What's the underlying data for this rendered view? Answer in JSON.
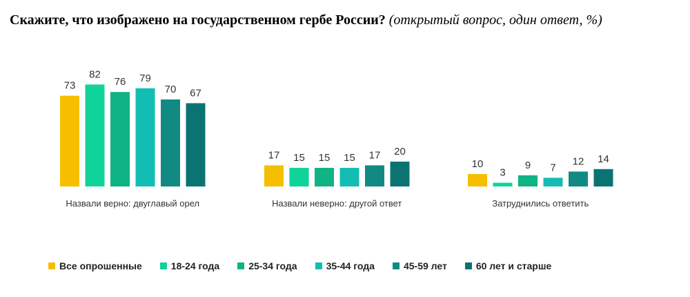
{
  "question": {
    "main": "Скажите, что изображено на государственном гербе России?",
    "note": "(открытый вопрос, один ответ, %)"
  },
  "colors": [
    "#f5bf00",
    "#10d39a",
    "#0fb384",
    "#13bdb4",
    "#118a84",
    "#0b7473"
  ],
  "chart_data": {
    "type": "bar",
    "categories": [
      "Назвали верно: двуглавый орел",
      "Назвали неверно: другой ответ",
      "Затруднились ответить"
    ],
    "series": [
      {
        "name": "Все опрошенные",
        "values": [
          73,
          17,
          10
        ]
      },
      {
        "name": "18-24 года",
        "values": [
          82,
          15,
          3
        ]
      },
      {
        "name": "25-34 года",
        "values": [
          76,
          15,
          9
        ]
      },
      {
        "name": "35-44 года",
        "values": [
          79,
          15,
          7
        ]
      },
      {
        "name": "45-59 лет",
        "values": [
          70,
          17,
          12
        ]
      },
      {
        "name": "60 лет и старше",
        "values": [
          67,
          20,
          14
        ]
      }
    ],
    "legend_position": "bottom",
    "grid": false
  }
}
